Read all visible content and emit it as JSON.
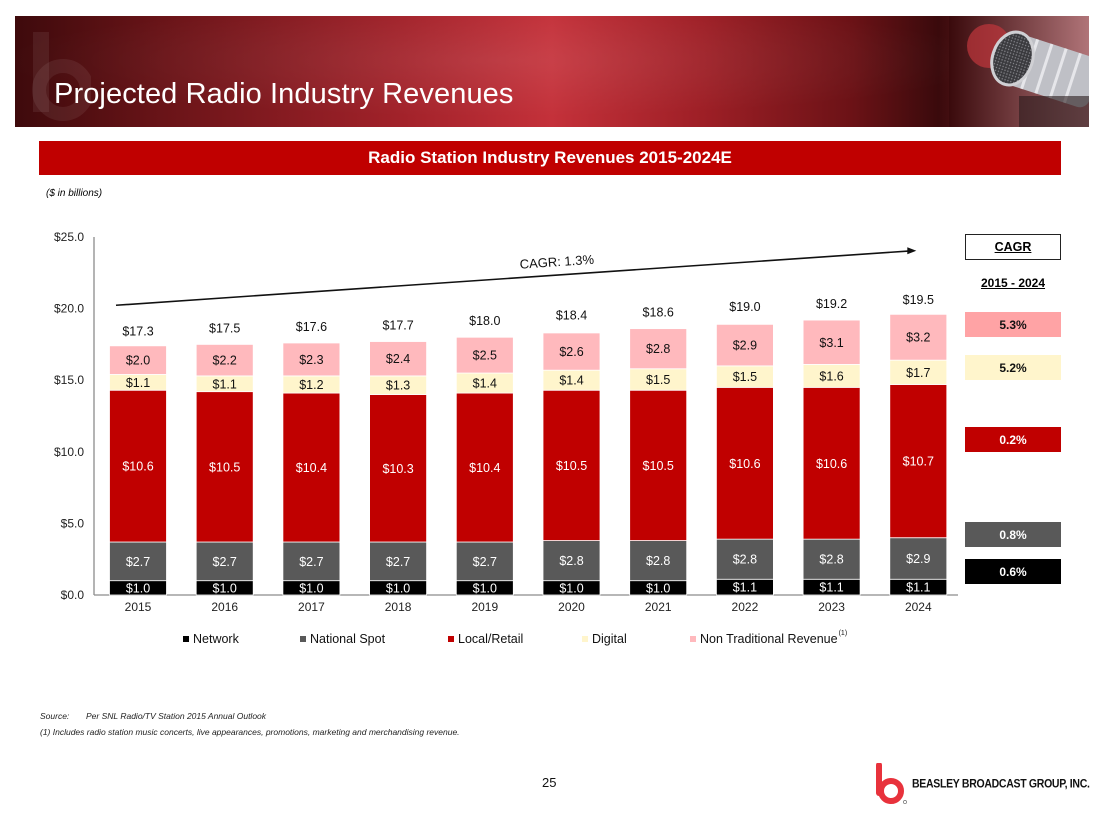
{
  "header": {
    "title": "Projected Radio Industry Revenues"
  },
  "chart_title_bar": {
    "title": "Radio Station Industry Revenues 2015-2024E"
  },
  "units_note": "($ in billions)",
  "colors": {
    "network": "#000000",
    "national_spot": "#595959",
    "local_retail": "#c00000",
    "digital": "#fff5cc",
    "non_traditional": "#ffb9bd",
    "cagr_non_traditional": "#ffa3a5",
    "title_bar": "#c00000"
  },
  "chart_data": {
    "type": "bar",
    "stacked": true,
    "title": "Radio Station Industry Revenues 2015-2024E",
    "xlabel": "",
    "ylabel": "($ in billions)",
    "ylim": [
      0,
      25
    ],
    "yticks": [
      0,
      5,
      10,
      15,
      20,
      25
    ],
    "ytick_labels": [
      "$0.0",
      "$5.0",
      "$10.0",
      "$15.0",
      "$20.0",
      "$25.0"
    ],
    "grid": false,
    "legend_position": "bottom",
    "categories": [
      "2015",
      "2016",
      "2017",
      "2018",
      "2019",
      "2020",
      "2021",
      "2022",
      "2023",
      "2024"
    ],
    "series": [
      {
        "key": "network",
        "name": "Network",
        "values": [
          1.0,
          1.0,
          1.0,
          1.0,
          1.0,
          1.0,
          1.0,
          1.1,
          1.1,
          1.1
        ]
      },
      {
        "key": "national_spot",
        "name": "National Spot",
        "values": [
          2.7,
          2.7,
          2.7,
          2.7,
          2.7,
          2.8,
          2.8,
          2.8,
          2.8,
          2.9
        ]
      },
      {
        "key": "local_retail",
        "name": "Local/Retail",
        "values": [
          10.6,
          10.5,
          10.4,
          10.3,
          10.4,
          10.5,
          10.5,
          10.6,
          10.6,
          10.7
        ]
      },
      {
        "key": "digital",
        "name": "Digital",
        "values": [
          1.1,
          1.1,
          1.2,
          1.3,
          1.4,
          1.4,
          1.5,
          1.5,
          1.6,
          1.7
        ]
      },
      {
        "key": "non_traditional",
        "name": "Non Traditional Revenue",
        "footnote": "(1)",
        "values": [
          2.0,
          2.2,
          2.3,
          2.4,
          2.5,
          2.6,
          2.8,
          2.9,
          3.1,
          3.2
        ]
      }
    ],
    "totals": [
      17.3,
      17.5,
      17.6,
      17.7,
      18.0,
      18.4,
      18.6,
      19.0,
      19.2,
      19.5
    ],
    "value_prefix": "$",
    "annotation": {
      "text": "CAGR: 1.3%",
      "type": "trend-arrow",
      "from_category": "2015",
      "to_category": "2024"
    }
  },
  "cagr_panel": {
    "header": "CAGR",
    "period": "2015 - 2024",
    "items": [
      {
        "series": "non_traditional",
        "value": "5.3%"
      },
      {
        "series": "digital",
        "value": "5.2%"
      },
      {
        "series": "local_retail",
        "value": "0.2%"
      },
      {
        "series": "national_spot",
        "value": "0.8%"
      },
      {
        "series": "network",
        "value": "0.6%"
      }
    ]
  },
  "legend": {
    "items": [
      {
        "label": "Network"
      },
      {
        "label": "National Spot"
      },
      {
        "label": "Local/Retail"
      },
      {
        "label": "Digital"
      },
      {
        "label": "Non Traditional Revenue",
        "sup": "(1)"
      }
    ]
  },
  "footnotes": {
    "source_label": "Source:",
    "source_text": "Per SNL Radio/TV Station 2015 Annual Outlook",
    "note_1": "(1)  Includes radio station music concerts, live appearances, promotions, marketing and merchandising revenue."
  },
  "page_number": "25",
  "company": {
    "name": "BEASLEY BROADCAST GROUP, INC."
  }
}
